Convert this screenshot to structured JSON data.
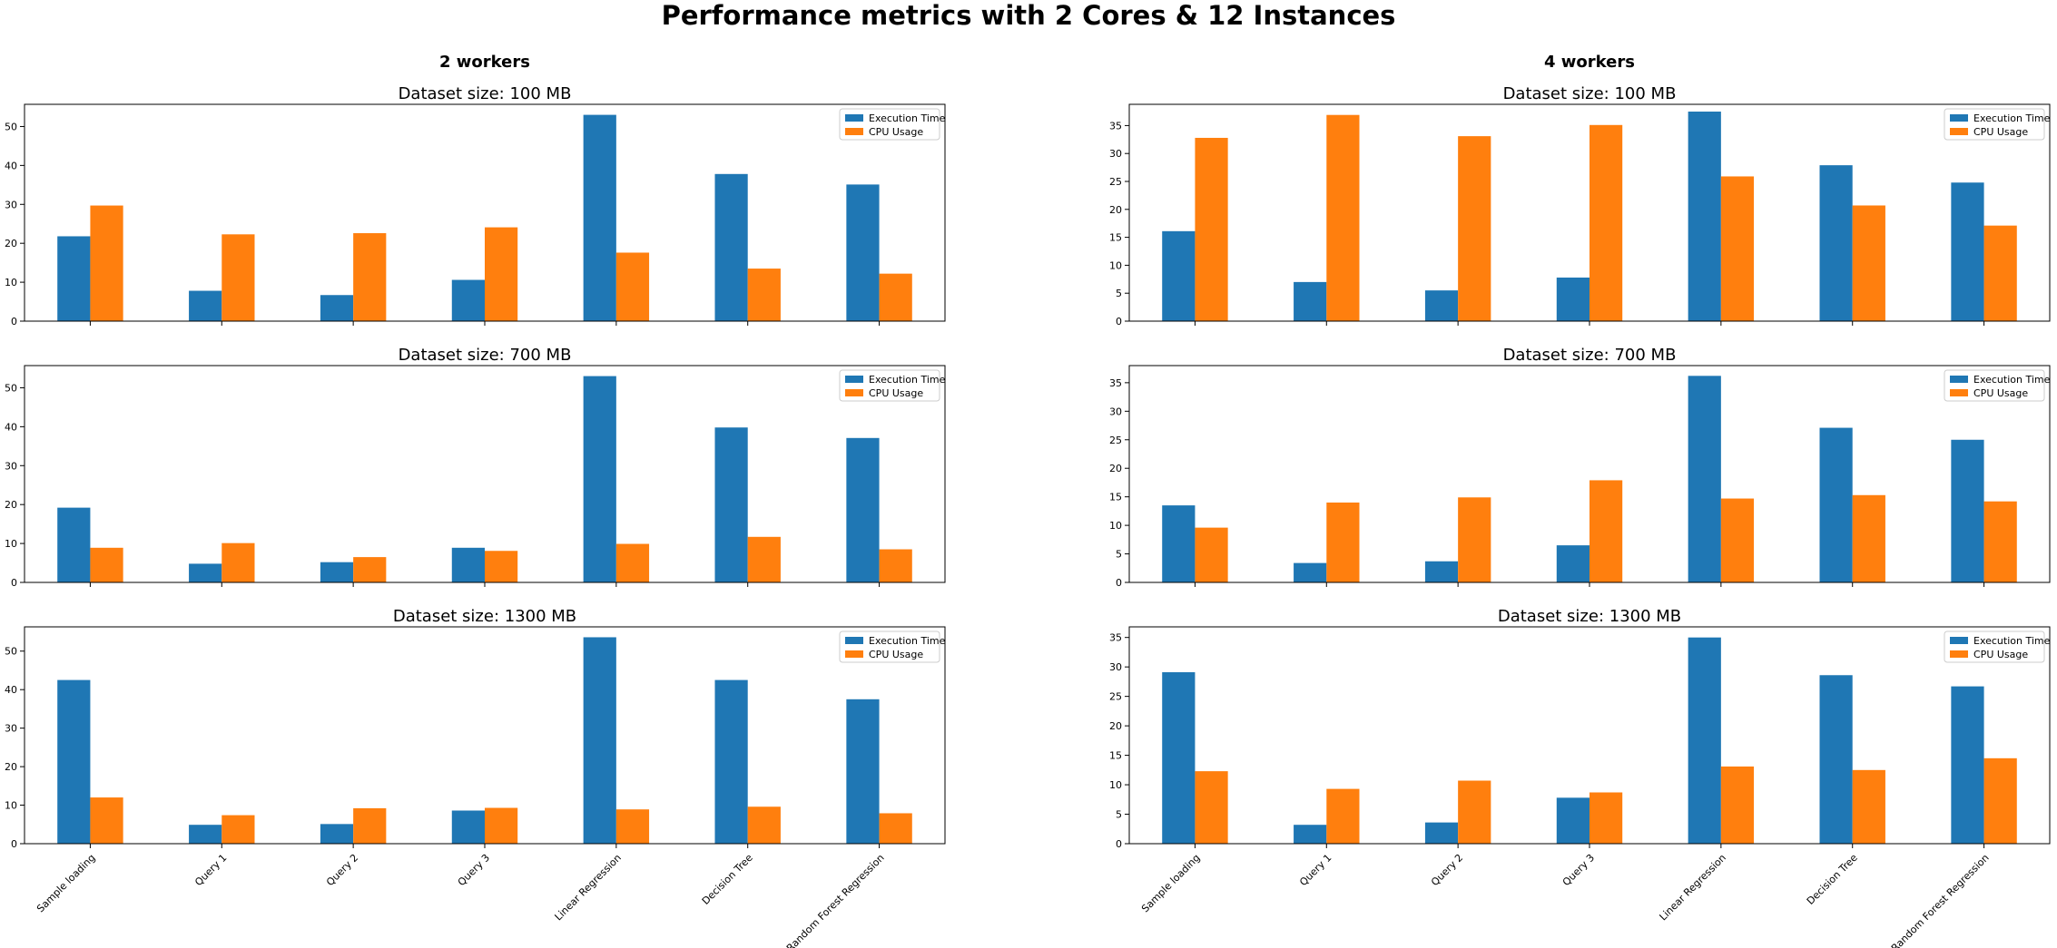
{
  "title": "Performance metrics with 2 Cores & 12 Instances",
  "columns": [
    {
      "title": "2 workers"
    },
    {
      "title": "4 workers"
    }
  ],
  "colors": {
    "execution_time": "#1f77b4",
    "cpu_usage": "#ff7f0e"
  },
  "chart_data": [
    {
      "type": "bar",
      "title": "Dataset size: 100 MB",
      "categories": [
        "Sample loading",
        "Query 1",
        "Query 2",
        "Query 3",
        "Linear Regression",
        "Decision Tree",
        "Random Forest Regression"
      ],
      "series": [
        {
          "name": "Execution Time",
          "values": [
            21.8,
            7.8,
            6.7,
            10.6,
            53.0,
            37.8,
            35.1
          ]
        },
        {
          "name": "CPU Usage",
          "values": [
            29.7,
            22.3,
            22.6,
            24.1,
            17.6,
            13.5,
            12.2
          ]
        }
      ],
      "ylim": [
        0,
        55.7
      ],
      "yticks": [
        0,
        10,
        20,
        30,
        40,
        50
      ],
      "legend": "top-right",
      "show_xlabels": false
    },
    {
      "type": "bar",
      "title": "Dataset size: 100 MB",
      "categories": [
        "Sample loading",
        "Query 1",
        "Query 2",
        "Query 3",
        "Linear Regression",
        "Decision Tree",
        "Random Forest Regression"
      ],
      "series": [
        {
          "name": "Execution Time",
          "values": [
            16.1,
            7.0,
            5.5,
            7.8,
            37.5,
            27.9,
            24.8
          ]
        },
        {
          "name": "CPU Usage",
          "values": [
            32.8,
            36.9,
            33.1,
            35.1,
            25.9,
            20.7,
            17.1
          ]
        }
      ],
      "ylim": [
        0,
        38.8
      ],
      "yticks": [
        0,
        5,
        10,
        15,
        20,
        25,
        30,
        35
      ],
      "legend": "top-right",
      "show_xlabels": false
    },
    {
      "type": "bar",
      "title": "Dataset size: 700 MB",
      "categories": [
        "Sample loading",
        "Query 1",
        "Query 2",
        "Query 3",
        "Linear Regression",
        "Decision Tree",
        "Random Forest Regression"
      ],
      "series": [
        {
          "name": "Execution Time",
          "values": [
            19.2,
            4.8,
            5.2,
            8.9,
            53.0,
            39.8,
            37.1
          ]
        },
        {
          "name": "CPU Usage",
          "values": [
            8.9,
            10.1,
            6.5,
            8.1,
            9.9,
            11.7,
            8.5
          ]
        }
      ],
      "ylim": [
        0,
        55.7
      ],
      "yticks": [
        0,
        10,
        20,
        30,
        40,
        50
      ],
      "legend": "top-right",
      "show_xlabels": false
    },
    {
      "type": "bar",
      "title": "Dataset size: 700 MB",
      "categories": [
        "Sample loading",
        "Query 1",
        "Query 2",
        "Query 3",
        "Linear Regression",
        "Decision Tree",
        "Random Forest Regression"
      ],
      "series": [
        {
          "name": "Execution Time",
          "values": [
            13.5,
            3.4,
            3.7,
            6.5,
            36.2,
            27.1,
            25.0
          ]
        },
        {
          "name": "CPU Usage",
          "values": [
            9.6,
            14.0,
            14.9,
            17.9,
            14.7,
            15.3,
            14.2
          ]
        }
      ],
      "ylim": [
        0,
        38.0
      ],
      "yticks": [
        0,
        5,
        10,
        15,
        20,
        25,
        30,
        35
      ],
      "legend": "top-right",
      "show_xlabels": false
    },
    {
      "type": "bar",
      "title": "Dataset size: 1300 MB",
      "categories": [
        "Sample loading",
        "Query 1",
        "Query 2",
        "Query 3",
        "Linear Regression",
        "Decision Tree",
        "Random Forest Regression"
      ],
      "series": [
        {
          "name": "Execution Time",
          "values": [
            42.5,
            4.9,
            5.1,
            8.6,
            53.6,
            42.5,
            37.5
          ]
        },
        {
          "name": "CPU Usage",
          "values": [
            12.0,
            7.4,
            9.2,
            9.3,
            8.9,
            9.6,
            7.9
          ]
        }
      ],
      "ylim": [
        0,
        56.3
      ],
      "yticks": [
        0,
        10,
        20,
        30,
        40,
        50
      ],
      "legend": "top-right",
      "show_xlabels": true
    },
    {
      "type": "bar",
      "title": "Dataset size: 1300 MB",
      "categories": [
        "Sample loading",
        "Query 1",
        "Query 2",
        "Query 3",
        "Linear Regression",
        "Decision Tree",
        "Random Forest Regression"
      ],
      "series": [
        {
          "name": "Execution Time",
          "values": [
            29.1,
            3.2,
            3.6,
            7.8,
            35.0,
            28.6,
            26.7
          ]
        },
        {
          "name": "CPU Usage",
          "values": [
            12.3,
            9.3,
            10.7,
            8.7,
            13.1,
            12.5,
            14.5
          ]
        }
      ],
      "ylim": [
        0,
        36.8
      ],
      "yticks": [
        0,
        5,
        10,
        15,
        20,
        25,
        30,
        35
      ],
      "legend": "top-right",
      "show_xlabels": true
    }
  ]
}
